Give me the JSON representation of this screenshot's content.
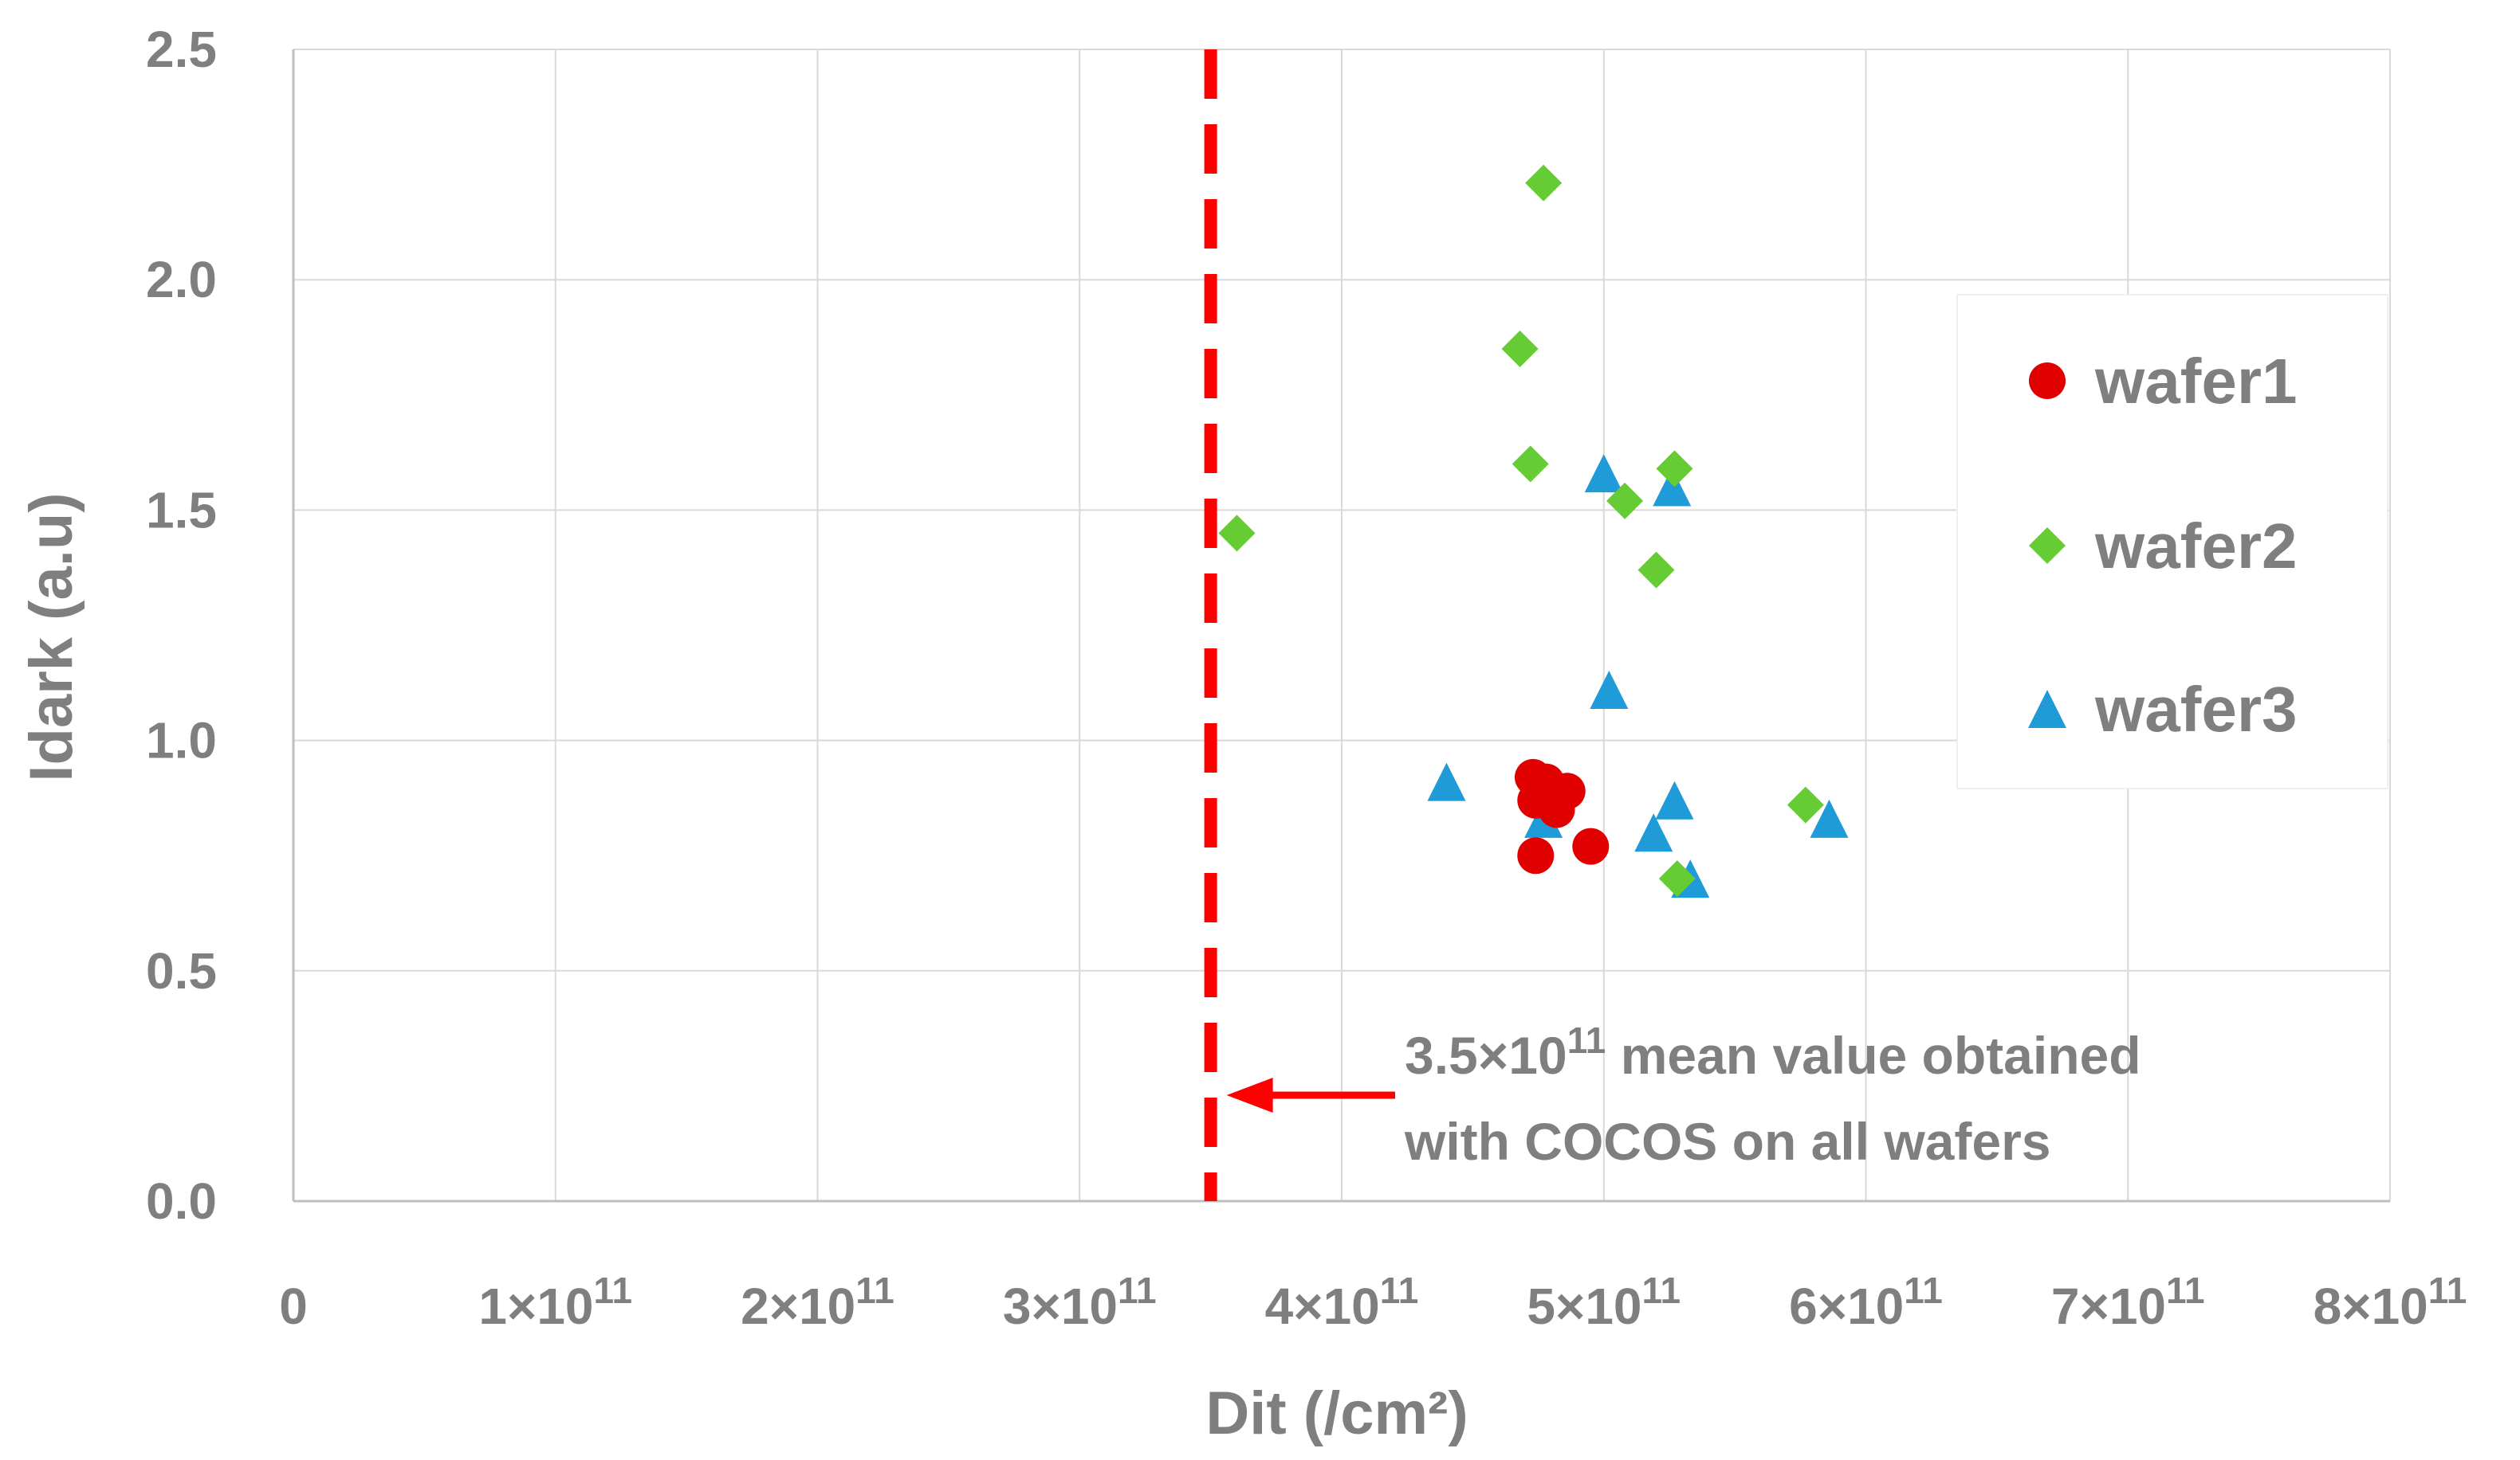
{
  "chart_data": {
    "type": "scatter",
    "title": "",
    "xlabel": "Dit (/cm²)",
    "ylabel": "Idark (a.u)",
    "xlim": [
      0,
      800000000000.0
    ],
    "ylim": [
      0,
      2.5
    ],
    "grid": true,
    "legend_position": "right",
    "x_ticks": [
      {
        "value": 0,
        "base": "0",
        "exp": ""
      },
      {
        "value": 100000000000.0,
        "base": "1×10",
        "exp": "11"
      },
      {
        "value": 200000000000.0,
        "base": "2×10",
        "exp": "11"
      },
      {
        "value": 300000000000.0,
        "base": "3×10",
        "exp": "11"
      },
      {
        "value": 400000000000.0,
        "base": "4×10",
        "exp": "11"
      },
      {
        "value": 500000000000.0,
        "base": "5×10",
        "exp": "11"
      },
      {
        "value": 600000000000.0,
        "base": "6×10",
        "exp": "11"
      },
      {
        "value": 700000000000.0,
        "base": "7×10",
        "exp": "11"
      },
      {
        "value": 800000000000.0,
        "base": "8×10",
        "exp": "11"
      }
    ],
    "y_ticks": [
      {
        "value": 0,
        "label": "0.0"
      },
      {
        "value": 0.5,
        "label": "0.5"
      },
      {
        "value": 1.0,
        "label": "1.0"
      },
      {
        "value": 1.5,
        "label": "1.5"
      },
      {
        "value": 2.0,
        "label": "2.0"
      },
      {
        "value": 2.5,
        "label": "2.5"
      }
    ],
    "series": [
      {
        "name": "wafer1",
        "marker": "circle",
        "color": "#e00000",
        "points": [
          {
            "x": 473000000000.0,
            "y": 0.92
          },
          {
            "x": 478000000000.0,
            "y": 0.91
          },
          {
            "x": 479000000000.0,
            "y": 0.88
          },
          {
            "x": 486000000000.0,
            "y": 0.89
          },
          {
            "x": 474000000000.0,
            "y": 0.87
          },
          {
            "x": 482000000000.0,
            "y": 0.85
          },
          {
            "x": 495000000000.0,
            "y": 0.77
          },
          {
            "x": 474000000000.0,
            "y": 0.75
          }
        ]
      },
      {
        "name": "wafer2",
        "marker": "diamond",
        "color": "#66cc33",
        "points": [
          {
            "x": 477000000000.0,
            "y": 2.21
          },
          {
            "x": 468000000000.0,
            "y": 1.85
          },
          {
            "x": 472000000000.0,
            "y": 1.6
          },
          {
            "x": 527000000000.0,
            "y": 1.59
          },
          {
            "x": 508000000000.0,
            "y": 1.52
          },
          {
            "x": 360000000000.0,
            "y": 1.45
          },
          {
            "x": 520000000000.0,
            "y": 1.37
          },
          {
            "x": 577000000000.0,
            "y": 0.86
          },
          {
            "x": 528000000000.0,
            "y": 0.7
          }
        ]
      },
      {
        "name": "wafer3",
        "marker": "triangle",
        "color": "#1f9bd7",
        "points": [
          {
            "x": 500000000000.0,
            "y": 1.58
          },
          {
            "x": 526000000000.0,
            "y": 1.55
          },
          {
            "x": 502000000000.0,
            "y": 1.11
          },
          {
            "x": 440000000000.0,
            "y": 0.91
          },
          {
            "x": 527000000000.0,
            "y": 0.87
          },
          {
            "x": 477000000000.0,
            "y": 0.83
          },
          {
            "x": 586000000000.0,
            "y": 0.83
          },
          {
            "x": 519000000000.0,
            "y": 0.8
          },
          {
            "x": 533000000000.0,
            "y": 0.7
          }
        ]
      }
    ],
    "reference_line": {
      "x": 350000000000.0,
      "color": "#ff0000",
      "style": "dashed",
      "annotation_line1_base": "3.5×10",
      "annotation_line1_exp": "11",
      "annotation_line1_rest": " mean value obtained",
      "annotation_line2": "with COCOS on all wafers",
      "arrow_y": 0.23
    }
  }
}
